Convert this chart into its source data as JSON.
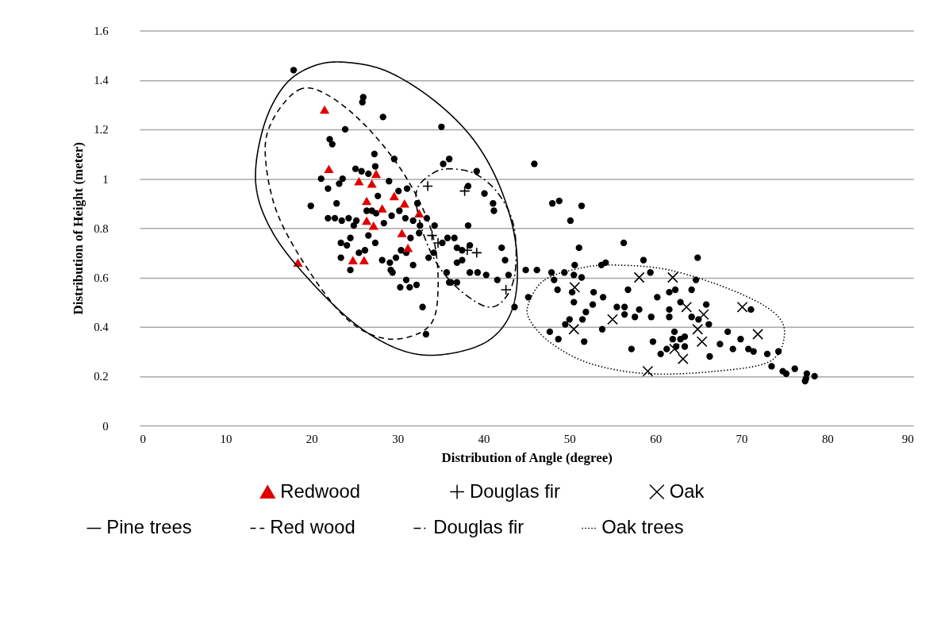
{
  "chart_data": {
    "type": "scatter",
    "xlabel": "Distribution of Angle (degree)",
    "ylabel": "Distribution of Height (meter)",
    "xlim": [
      0,
      90
    ],
    "xticks": [
      0,
      10,
      20,
      30,
      40,
      50,
      60,
      70,
      80,
      90
    ],
    "ylim": [
      0,
      1.6
    ],
    "yticks": [
      0,
      0.2,
      0.4,
      0.6,
      0.8,
      1,
      1.2,
      1.4,
      1.6
    ],
    "grid": "y",
    "legend": "bottom",
    "annotations": [
      "Pine trees",
      "Red wood",
      "Douglas fir",
      "Oak trees"
    ],
    "series": [
      {
        "marker": "circle",
        "color": "#000000",
        "x": [
          17.9,
          26.0,
          25.9,
          28.3,
          23.9,
          35.1,
          22.1,
          22.4,
          27.3,
          29.6,
          35.3,
          36.0,
          25.1,
          25.8,
          26.6,
          27.4,
          21.1,
          23.6,
          29.0,
          21.9,
          23.2,
          30.1,
          31.1,
          19.9,
          22.9,
          27.7,
          32.3,
          21.9,
          22.7,
          23.5,
          24.3,
          25.2,
          24.9,
          27.0,
          26.4,
          27.5,
          29.3,
          30.2,
          30.9,
          31.8,
          32.6,
          33.4,
          34.3,
          32.5,
          28.4,
          27.4,
          26.6,
          24.5,
          23.4,
          24.1,
          26.2,
          25.5,
          23.4,
          24.5,
          28.2,
          29.1,
          29.8,
          30.4,
          31.0,
          31.5,
          33.6,
          34.2,
          31.8,
          29.2,
          29.4,
          31.0,
          30.3,
          31.4,
          32.2,
          32.9,
          33.3,
          35.7,
          36.0,
          35.8,
          39.2,
          40.1,
          41.1,
          41.2,
          45.9,
          48.0,
          48.8,
          38.2,
          38.2,
          36.6,
          35.2,
          36.9,
          37.5,
          38.4,
          42.1,
          42.5,
          36.9,
          37.5,
          38.4,
          39.3,
          40.3,
          42.9,
          41.6,
          43.6,
          36.2,
          36.9,
          44.9,
          46.2,
          47.9,
          49.4,
          45.2,
          51.4,
          50.1,
          56.3,
          51.1,
          64.9,
          58.6,
          53.7,
          54.2,
          50.6,
          50.5,
          51.4,
          59.4,
          64.7,
          48.2,
          48.6,
          50.3,
          52.8,
          53.9,
          56.8,
          60.2,
          61.6,
          62.3,
          64.2,
          50.5,
          52.7,
          55.5,
          56.4,
          58.1,
          61.6,
          62.9,
          65.9,
          71.1,
          51.9,
          50.0,
          51.5,
          56.4,
          57.6,
          59.5,
          61.6,
          64.2,
          65.0,
          66.2,
          49.5,
          53.8,
          62.2,
          47.7,
          48.7,
          51.7,
          59.7,
          62.0,
          62.9,
          63.4,
          62.4,
          63.4,
          68.4,
          67.5,
          69.0,
          69.9,
          70.8,
          71.4,
          57.2,
          60.6,
          61.3,
          66.3,
          73.0,
          74.3,
          73.5,
          74.8,
          75.2,
          76.2,
          77.6,
          78.5,
          77.4,
          77.5
        ],
        "values": [
          1.44,
          1.33,
          1.31,
          1.25,
          1.2,
          1.21,
          1.16,
          1.14,
          1.1,
          1.08,
          1.06,
          1.08,
          1.04,
          1.03,
          1.02,
          1.05,
          1.0,
          1.0,
          0.99,
          0.96,
          0.98,
          0.95,
          0.96,
          0.89,
          0.9,
          0.93,
          0.9,
          0.84,
          0.84,
          0.83,
          0.84,
          0.83,
          0.81,
          0.87,
          0.87,
          0.86,
          0.85,
          0.87,
          0.84,
          0.83,
          0.81,
          0.84,
          0.81,
          0.78,
          0.82,
          0.74,
          0.77,
          0.76,
          0.74,
          0.73,
          0.71,
          0.7,
          0.68,
          0.63,
          0.67,
          0.66,
          0.68,
          0.71,
          0.7,
          0.76,
          0.68,
          0.7,
          0.65,
          0.63,
          0.62,
          0.59,
          0.56,
          0.56,
          0.57,
          0.48,
          0.37,
          0.62,
          0.58,
          0.76,
          1.03,
          0.94,
          0.9,
          0.87,
          1.06,
          0.9,
          0.91,
          0.97,
          0.81,
          0.76,
          0.74,
          0.72,
          0.71,
          0.73,
          0.72,
          0.67,
          0.66,
          0.67,
          0.62,
          0.62,
          0.61,
          0.61,
          0.59,
          0.48,
          0.58,
          0.58,
          0.63,
          0.63,
          0.62,
          0.62,
          0.52,
          0.89,
          0.83,
          0.74,
          0.72,
          0.68,
          0.67,
          0.65,
          0.66,
          0.65,
          0.61,
          0.6,
          0.62,
          0.59,
          0.59,
          0.55,
          0.54,
          0.54,
          0.52,
          0.55,
          0.52,
          0.54,
          0.55,
          0.55,
          0.5,
          0.49,
          0.48,
          0.48,
          0.47,
          0.47,
          0.5,
          0.49,
          0.47,
          0.46,
          0.43,
          0.43,
          0.45,
          0.44,
          0.44,
          0.44,
          0.44,
          0.43,
          0.41,
          0.41,
          0.39,
          0.38,
          0.38,
          0.35,
          0.34,
          0.34,
          0.35,
          0.35,
          0.36,
          0.32,
          0.32,
          0.38,
          0.33,
          0.31,
          0.35,
          0.31,
          0.3,
          0.31,
          0.29,
          0.31,
          0.28,
          0.29,
          0.3,
          0.24,
          0.22,
          0.21,
          0.23,
          0.21,
          0.2,
          0.18,
          0.19
        ]
      },
      {
        "name": "Redwood",
        "marker": "triangle",
        "color": "#e00000",
        "x": [
          21.5,
          22.0,
          25.5,
          27.5,
          27.0,
          26.4,
          29.6,
          30.8,
          28.2,
          32.5,
          26.4,
          27.2,
          30.5,
          31.2,
          24.8,
          26.1,
          18.4
        ],
        "values": [
          1.28,
          1.04,
          0.99,
          1.02,
          0.98,
          0.91,
          0.93,
          0.9,
          0.88,
          0.86,
          0.83,
          0.81,
          0.78,
          0.72,
          0.67,
          0.67,
          0.66
        ]
      },
      {
        "name": "Douglas fir",
        "marker": "cross",
        "color": "#000000",
        "x": [
          33.5,
          37.8,
          34.0,
          34.7,
          38.1,
          39.2,
          42.6
        ],
        "values": [
          0.97,
          0.95,
          0.77,
          0.74,
          0.71,
          0.7,
          0.55
        ]
      },
      {
        "name": "Oak",
        "marker": "x",
        "color": "#000000",
        "x": [
          58.1,
          62.0,
          50.6,
          63.6,
          70.1,
          55.0,
          65.6,
          50.5,
          64.9,
          71.9,
          65.4,
          62.2,
          63.2,
          59.1
        ],
        "values": [
          0.6,
          0.6,
          0.56,
          0.48,
          0.48,
          0.43,
          0.45,
          0.39,
          0.39,
          0.37,
          0.34,
          0.31,
          0.27,
          0.22
        ]
      }
    ]
  }
}
